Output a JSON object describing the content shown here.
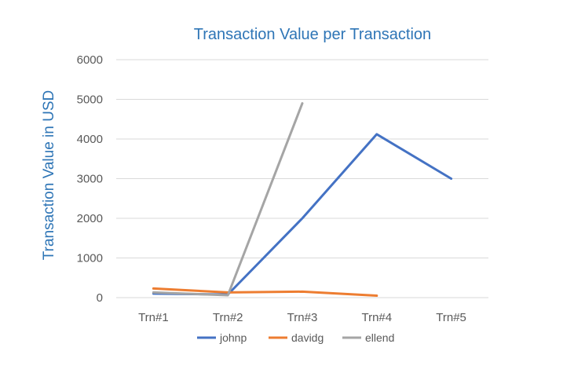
{
  "chart_data": {
    "type": "line",
    "title": "Transaction Value per Transaction",
    "xlabel": "",
    "ylabel": "Transaction Value in USD",
    "categories": [
      "Trn#1",
      "Trn#2",
      "Trn#3",
      "Trn#4",
      "Trn#5"
    ],
    "ylim": [
      0,
      6000
    ],
    "yticks": [
      0,
      1000,
      2000,
      3000,
      4000,
      5000,
      6000
    ],
    "grid": true,
    "legend_position": "bottom",
    "series": [
      {
        "name": "johnp",
        "color": "#4472c4",
        "values": [
          100,
          80,
          2000,
          4120,
          3000
        ]
      },
      {
        "name": "davidg",
        "color": "#ed7d31",
        "values": [
          230,
          130,
          150,
          50,
          null
        ]
      },
      {
        "name": "ellend",
        "color": "#a5a5a5",
        "values": [
          130,
          60,
          4900,
          null,
          null
        ]
      }
    ],
    "colors": {
      "title": "#2e75b6",
      "ylabel": "#2e75b6",
      "ticks": "#595959",
      "grid": "#d9d9d9"
    }
  }
}
